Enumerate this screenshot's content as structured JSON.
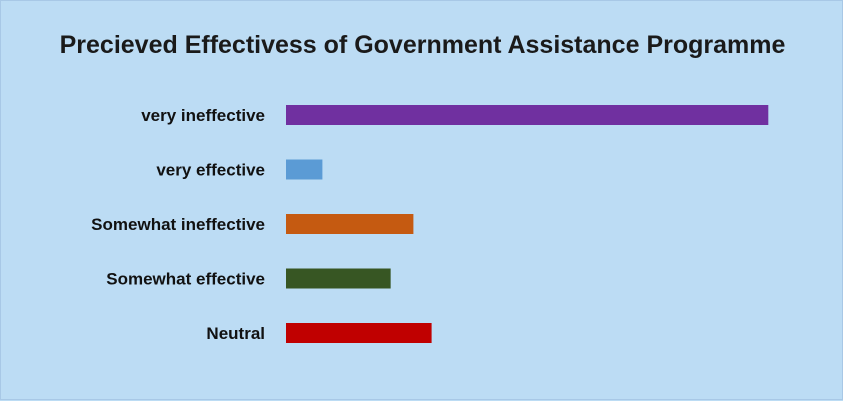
{
  "chart_data": {
    "type": "bar",
    "orientation": "horizontal",
    "title": "Precieved Effectivess of Government Assistance Programme",
    "xlabel": "",
    "ylabel": "",
    "categories": [
      "very ineffective",
      "very effective",
      "Somewhat ineffective",
      "Somewhat effective",
      "Neutral"
    ],
    "values": [
      53,
      4,
      14,
      11.5,
      16
    ],
    "xlim": [
      0,
      60
    ],
    "colors": [
      "#7030a0",
      "#5b9bd5",
      "#c55a11",
      "#375623",
      "#c00000"
    ],
    "grid": false,
    "legend": "none",
    "background": "#bcdcf4"
  }
}
